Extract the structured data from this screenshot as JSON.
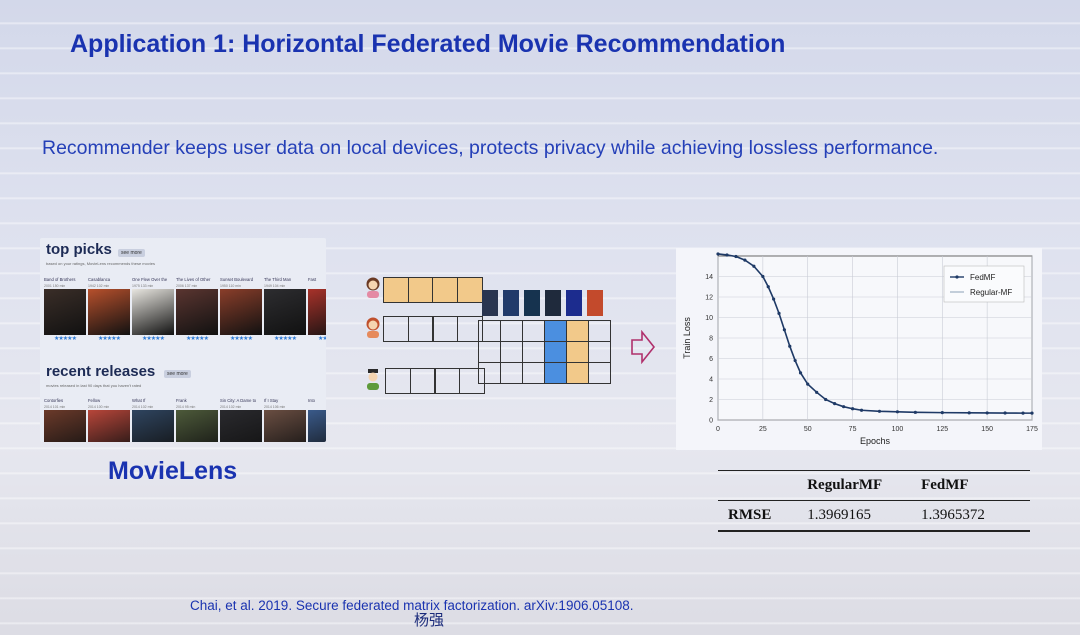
{
  "slide": {
    "title": "Application 1: Horizontal Federated Movie Recommendation",
    "subtitle": "Recommender keeps user data on local devices, protects privacy while achieving lossless performance.",
    "dataset_label": "MovieLens",
    "citation": "Chai, et al. 2019. Secure federated matrix factorization. arXiv:1906.05108.",
    "author_mark": "杨强"
  },
  "movielens": {
    "top_picks": {
      "heading": "top picks",
      "more_label": "see more",
      "description": "based on your ratings, MovieLens recommends these movies",
      "movies": [
        {
          "title": "Band of Brothers",
          "meta": "2001  150 min",
          "poster": "#3a2e28"
        },
        {
          "title": "Casablanca",
          "meta": "1942  102 min",
          "poster": "#b7502c"
        },
        {
          "title": "One Flew Over the",
          "meta": "1975  133 min",
          "poster": "#e8e6e0"
        },
        {
          "title": "The Lives of Other",
          "meta": "2006  137 min",
          "poster": "#5a3530"
        },
        {
          "title": "Sunset Boulevard",
          "meta": "1950  110 min",
          "poster": "#8a3e2a"
        },
        {
          "title": "The Third Man",
          "meta": "1949  104 min",
          "poster": "#2d2d30"
        },
        {
          "title": "Fast",
          "meta": "",
          "poster": "#a8322a"
        }
      ],
      "stars": "★★★★★"
    },
    "recent_releases": {
      "heading": "recent releases",
      "more_label": "see more",
      "description": "movies released in last 90 days that you haven't rated",
      "movies": [
        {
          "title": "Contorfies",
          "meta": "2014  101 min",
          "poster": "#6b3a2a"
        },
        {
          "title": "Fellow",
          "meta": "2014  100 min",
          "poster": "#b8463a"
        },
        {
          "title": "What If",
          "meta": "2014  102 min",
          "poster": "#2f4560"
        },
        {
          "title": "Frank",
          "meta": "2014  95 min",
          "poster": "#4d5a3a"
        },
        {
          "title": "Sin City: A Dame to",
          "meta": "2014  102 min",
          "poster": "#2a2a2e"
        },
        {
          "title": "If I Stay",
          "meta": "2014  106 min",
          "poster": "#6a4e42"
        },
        {
          "title": "Into",
          "meta": "",
          "poster": "#3a5a8a"
        }
      ]
    }
  },
  "diagram": {
    "users": [
      {
        "icon": "user-female-icon",
        "vector_fill": "#f2c98a"
      },
      {
        "icon": "user-redhead-icon",
        "vector_fill": "none"
      },
      {
        "icon": "user-male-icon",
        "vector_fill": "none"
      }
    ],
    "item_poster_colors": [
      "#2a3550",
      "#213a6a",
      "#16334f",
      "#1f2a3c",
      "#1c2c8e",
      "#c34a2c"
    ],
    "highlight_columns": [
      {
        "index": 3,
        "color": "#4b8fe0"
      },
      {
        "index": 4,
        "color": "#f2c98a"
      }
    ],
    "arrow_color": "#b0306c"
  },
  "chart_data": {
    "type": "line",
    "xlabel": "Epochs",
    "ylabel": "Train Loss",
    "xlim": [
      0,
      175
    ],
    "ylim": [
      0,
      16
    ],
    "xticks": [
      0,
      25,
      50,
      75,
      100,
      125,
      150,
      175
    ],
    "yticks": [
      0,
      2,
      4,
      6,
      8,
      10,
      12,
      14,
      16
    ],
    "grid": true,
    "legend_position": "top-right",
    "series": [
      {
        "name": "FedMF",
        "marker": "dot",
        "color": "#1f3a66",
        "x": [
          0,
          5,
          10,
          15,
          20,
          25,
          28,
          31,
          34,
          37,
          40,
          43,
          46,
          50,
          55,
          60,
          65,
          70,
          75,
          80,
          90,
          100,
          110,
          125,
          140,
          150,
          160,
          170,
          175
        ],
        "y": [
          16.2,
          16.1,
          15.95,
          15.6,
          15.0,
          14.0,
          13.0,
          11.8,
          10.4,
          8.8,
          7.2,
          5.8,
          4.6,
          3.5,
          2.7,
          2.0,
          1.6,
          1.3,
          1.1,
          0.95,
          0.85,
          0.8,
          0.75,
          0.72,
          0.7,
          0.69,
          0.68,
          0.67,
          0.67
        ]
      },
      {
        "name": "Regular-MF",
        "marker": "line",
        "color": "#8ca0b8",
        "x": [
          0,
          5,
          10,
          15,
          20,
          25,
          28,
          31,
          34,
          37,
          40,
          43,
          46,
          50,
          55,
          60,
          65,
          70,
          75,
          80,
          90,
          100,
          110,
          125,
          140,
          150,
          160,
          170,
          175
        ],
        "y": [
          16.2,
          16.1,
          15.95,
          15.6,
          15.0,
          14.0,
          13.0,
          11.8,
          10.4,
          8.8,
          7.2,
          5.8,
          4.6,
          3.5,
          2.7,
          2.0,
          1.6,
          1.3,
          1.1,
          0.95,
          0.85,
          0.8,
          0.75,
          0.72,
          0.7,
          0.69,
          0.68,
          0.67,
          0.67
        ]
      }
    ]
  },
  "rmse_table": {
    "headers": [
      "",
      "RegularMF",
      "FedMF"
    ],
    "row_label": "RMSE",
    "regular_mf": "1.3969165",
    "fed_mf": "1.3965372"
  }
}
